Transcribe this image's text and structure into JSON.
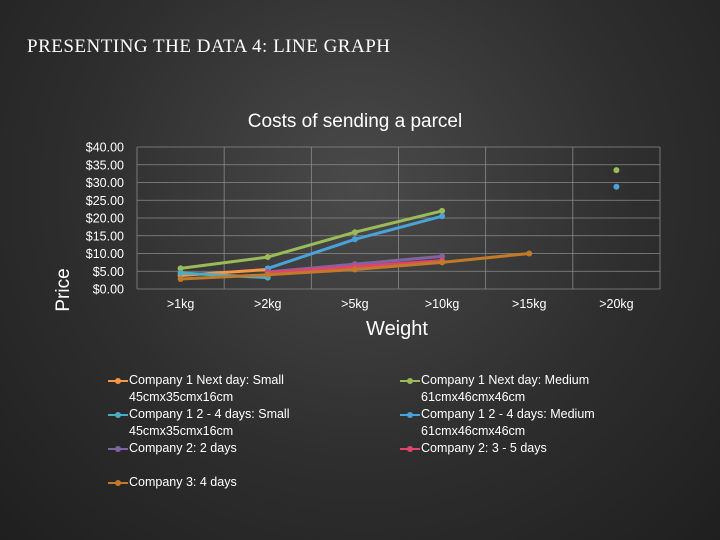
{
  "slide": {
    "title": "PRESENTING THE DATA 4: LINE GRAPH"
  },
  "chart_data": {
    "type": "line",
    "title": "Costs of sending a parcel",
    "xlabel": "Weight",
    "ylabel": "Price",
    "categories": [
      ">1kg",
      ">2kg",
      ">5kg",
      ">10kg",
      ">15kg",
      ">20kg"
    ],
    "ylim": [
      0,
      40
    ],
    "yticks": [
      "$0.00",
      "$5.00",
      "$10.00",
      "$15.00",
      "$20.00",
      "$25.00",
      "$30.00",
      "$35.00",
      "$40.00"
    ],
    "grid": true,
    "legend_position": "bottom",
    "series": [
      {
        "name": "Company 1 Next day: Small 45cmx35cmx16cm",
        "color": "#f79646",
        "values": [
          3.8,
          5.5,
          null,
          null,
          null,
          null
        ]
      },
      {
        "name": "Company 1 Next day: Medium 61cmx46cmx46cm",
        "color": "#9bbb59",
        "values": [
          5.8,
          9.0,
          16.0,
          22.0,
          null,
          33.5
        ]
      },
      {
        "name": "Company 1 2 - 4 days: Small 45cmx35cmx16cm",
        "color": "#4bacc6",
        "values": [
          4.5,
          3.2,
          null,
          null,
          null,
          null
        ]
      },
      {
        "name": "Company 1 2 - 4 days: Medium 61cmx46cmx46cm",
        "color": "#4aa3d8",
        "values": [
          null,
          5.8,
          14.0,
          20.5,
          null,
          28.8
        ]
      },
      {
        "name": "Company 2: 2 days",
        "color": "#8064a2",
        "values": [
          null,
          4.8,
          7.0,
          9.2,
          null,
          null
        ]
      },
      {
        "name": "Company 2: 3 - 5 days",
        "color": "#e0446a",
        "values": [
          null,
          4.6,
          6.3,
          8.0,
          null,
          null
        ]
      },
      {
        "name": "Company 3: 4 days",
        "color": "#c07a2a",
        "values": [
          2.8,
          4.0,
          5.5,
          7.5,
          10.0,
          null
        ]
      }
    ]
  }
}
